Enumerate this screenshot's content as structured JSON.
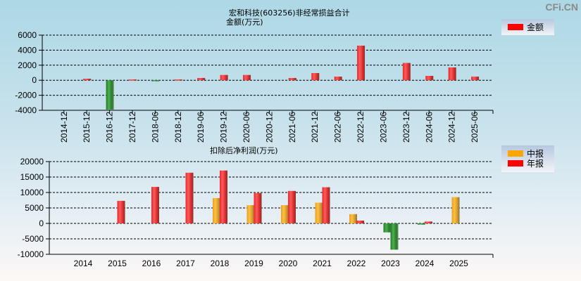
{
  "watermark": "CFi.CN",
  "chart_data": [
    {
      "type": "bar",
      "title": "宏和科技(603256)非经常损益合计",
      "ylabel": "金额(万元)",
      "xlabel": "",
      "ylim": [
        -4000,
        6000
      ],
      "yticks": [
        6000,
        4000,
        2000,
        0,
        -2000,
        -4000
      ],
      "grid": true,
      "legend_position": "top-right",
      "categories": [
        "2014-12",
        "2015-12",
        "2016-12",
        "2017-12",
        "2018-06",
        "2018-12",
        "2019-06",
        "2019-12",
        "2020-06",
        "2020-12",
        "2021-06",
        "2021-12",
        "2022-06",
        "2022-12",
        "2023-06",
        "2023-12",
        "2024-06",
        "2024-12",
        "2025-06"
      ],
      "series": [
        {
          "name": "金额",
          "color": "#ff0000",
          "negative_color": "#228b22",
          "values": [
            0,
            200,
            -3900,
            100,
            -50,
            100,
            300,
            700,
            700,
            0,
            300,
            950,
            480,
            4600,
            0,
            2300,
            580,
            1700,
            480
          ]
        }
      ]
    },
    {
      "type": "bar",
      "title": "扣除后净利润(万元)",
      "xlabel": "",
      "ylabel": "",
      "ylim": [
        -10000,
        20000
      ],
      "yticks": [
        20000,
        15000,
        10000,
        5000,
        0,
        -5000,
        -10000
      ],
      "grid": true,
      "legend_position": "top-right",
      "categories": [
        "2014",
        "2015",
        "2016",
        "2017",
        "2018",
        "2019",
        "2020",
        "2021",
        "2022",
        "2023",
        "2024",
        "2025"
      ],
      "series": [
        {
          "name": "中报",
          "color": "#ffa500",
          "negative_color": "#228b22",
          "values": [
            null,
            null,
            null,
            null,
            8200,
            5900,
            5900,
            6700,
            3000,
            -2900,
            -400,
            8500
          ]
        },
        {
          "name": "年报",
          "color": "#ff0000",
          "negative_color": "#228b22",
          "values": [
            null,
            7300,
            11800,
            16400,
            17100,
            9800,
            10500,
            11700,
            900,
            -8500,
            600,
            null
          ]
        }
      ]
    }
  ]
}
